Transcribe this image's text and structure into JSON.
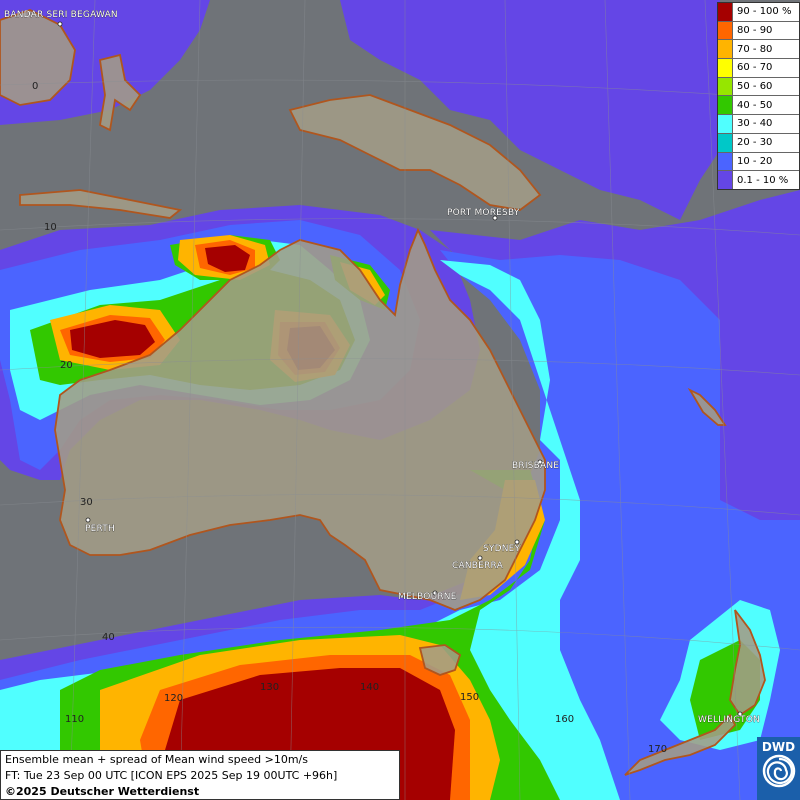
{
  "map": {
    "cities": {
      "bandar": "BANDAR SERI BEGAWAN",
      "port_moresby": "PORT MORESBY",
      "brisbane": "BRISBANE",
      "perth": "PERTH",
      "sydney": "SYDNEY",
      "canberra": "CANBERRA",
      "melbourne": "MELBOURNE",
      "wellington": "WELLINGTON"
    },
    "grid_labels": {
      "lat_0": "0",
      "lat_10": "10",
      "lat_20": "20",
      "lat_30": "30",
      "lat_40": "40",
      "lon_110": "110",
      "lon_120": "120",
      "lon_130": "130",
      "lon_140": "140",
      "lon_150": "150",
      "lon_160": "160",
      "lon_170": "170"
    }
  },
  "legend": {
    "items": [
      {
        "label": "90 - 100 %",
        "color": "#a50000"
      },
      {
        "label": "80 - 90",
        "color": "#ff6600"
      },
      {
        "label": "70 - 80",
        "color": "#ffb400"
      },
      {
        "label": "60 - 70",
        "color": "#ffff00"
      },
      {
        "label": "50 - 60",
        "color": "#96e600"
      },
      {
        "label": "40 - 50",
        "color": "#32c800"
      },
      {
        "label": "30 - 40",
        "color": "#50ffff"
      },
      {
        "label": "20 - 30",
        "color": "#00c8c8"
      },
      {
        "label": "10 - 20",
        "color": "#4b64ff"
      },
      {
        "label": "0.1 - 10 %",
        "color": "#6446e6"
      }
    ]
  },
  "info": {
    "line1": "Ensemble mean + spread of Mean wind speed >10m/s",
    "line2": "FT: Tue 23 Sep 00 UTC [ICON EPS 2025 Sep 19 00UTC +96h]",
    "copyright": "©2025 Deutscher Wetterdienst"
  },
  "logo": {
    "text": "DWD"
  }
}
